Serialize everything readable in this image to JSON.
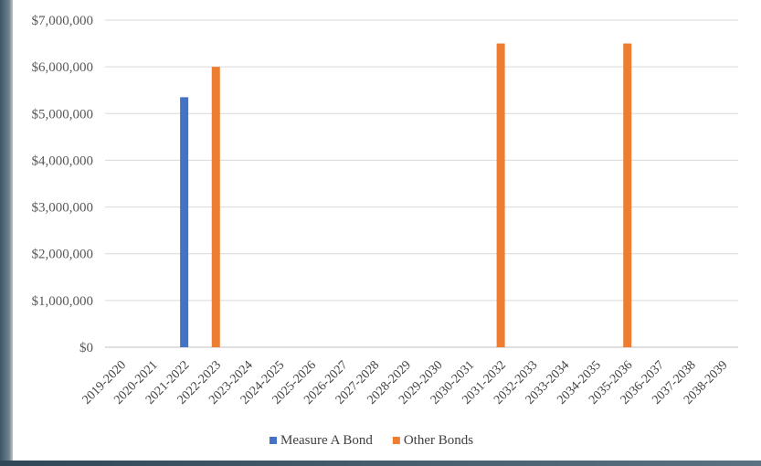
{
  "chart_data": {
    "type": "bar",
    "title": "",
    "xlabel": "",
    "ylabel": "",
    "categories": [
      "2019-2020",
      "2020-2021",
      "2021-2022",
      "2022-2023",
      "2023-2024",
      "2024-2025",
      "2025-2026",
      "2026-2027",
      "2027-2028",
      "2028-2029",
      "2029-2030",
      "2030-2031",
      "2031-2032",
      "2032-2033",
      "2033-2034",
      "2034-2035",
      "2035-2036",
      "2036-2037",
      "2037-2038",
      "2038-2039"
    ],
    "series": [
      {
        "name": "Measure A Bond",
        "color": "#4472c4",
        "values": [
          0,
          0,
          5350000,
          0,
          0,
          0,
          0,
          0,
          0,
          0,
          0,
          0,
          0,
          0,
          0,
          0,
          0,
          0,
          0,
          0
        ]
      },
      {
        "name": "Other Bonds",
        "color": "#ed7d31",
        "values": [
          0,
          0,
          0,
          6000000,
          0,
          0,
          0,
          0,
          0,
          0,
          0,
          0,
          6500000,
          0,
          0,
          0,
          6500000,
          0,
          0,
          0
        ]
      }
    ],
    "ylim": [
      0,
      7000000
    ],
    "yticks": [
      0,
      1000000,
      2000000,
      3000000,
      4000000,
      5000000,
      6000000,
      7000000
    ],
    "ytick_labels": [
      "$0",
      "$1,000,000",
      "$2,000,000",
      "$3,000,000",
      "$4,000,000",
      "$5,000,000",
      "$6,000,000",
      "$7,000,000"
    ],
    "grid": true,
    "legend_position": "bottom"
  }
}
